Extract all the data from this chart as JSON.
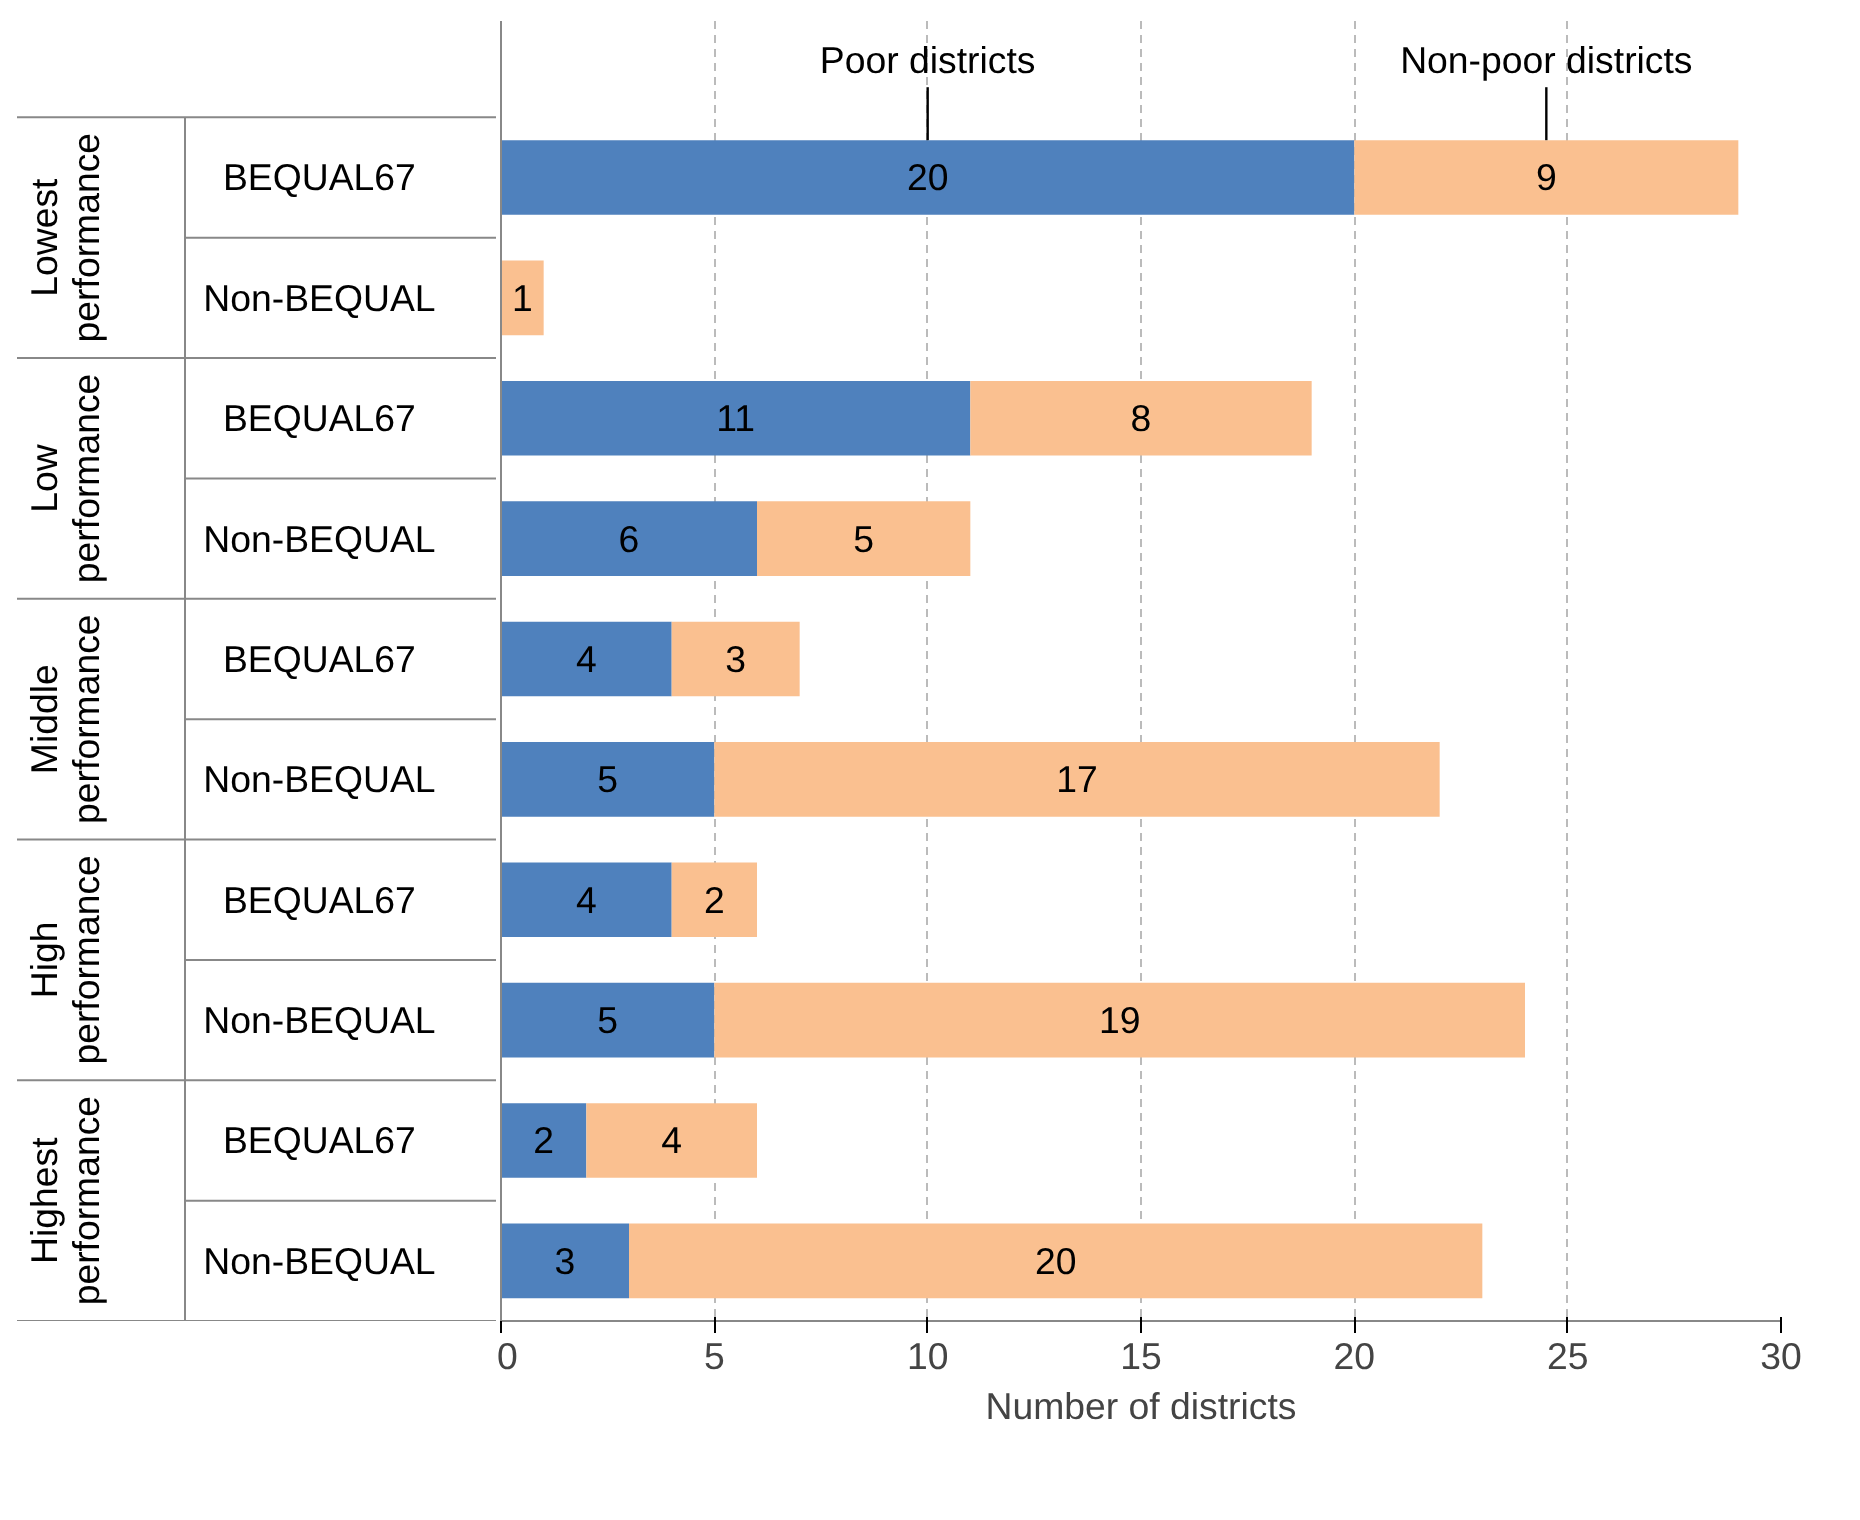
{
  "chart_data": {
    "type": "bar",
    "orientation": "horizontal",
    "stacked": true,
    "categories": [
      "BEQUAL67",
      "Non-BEQUAL",
      "BEQUAL67",
      "Non-BEQUAL",
      "BEQUAL67",
      "Non-BEQUAL",
      "BEQUAL67",
      "Non-BEQUAL",
      "BEQUAL67",
      "Non-BEQUAL"
    ],
    "annotations": [
      "Lowest performance",
      "Low performance",
      "Middle performance",
      "High performance",
      "Highest performance"
    ],
    "series": [
      {
        "name": "Poor districts",
        "color": "#4f81bd",
        "values": [
          20,
          0,
          11,
          6,
          4,
          5,
          4,
          5,
          2,
          3
        ],
        "value_labels": [
          "20",
          null,
          "11",
          "6",
          "4",
          "5",
          "4",
          "5",
          "2",
          "3"
        ]
      },
      {
        "name": "Non-poor districts",
        "color": "#fac090",
        "values": [
          9,
          1,
          8,
          5,
          3,
          17,
          2,
          19,
          4,
          20
        ],
        "value_labels": [
          "9",
          "1",
          "8",
          "5",
          "3",
          "17",
          "2",
          "19",
          "4",
          "20"
        ]
      }
    ],
    "xlabel": "Number of districts",
    "xlim": [
      0,
      30
    ],
    "xticks": [
      0,
      5,
      10,
      15,
      20,
      25,
      30
    ],
    "grid": "x"
  }
}
